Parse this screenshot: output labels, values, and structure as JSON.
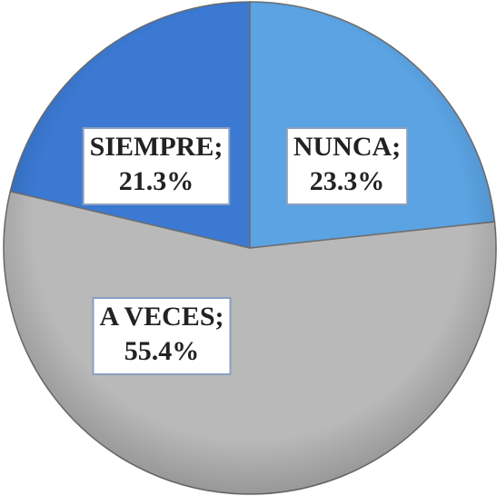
{
  "chart_data": {
    "type": "pie",
    "categories": [
      "NUNCA;",
      "A VECES;",
      "SIEMPRE;"
    ],
    "values": [
      23.3,
      55.4,
      21.3
    ],
    "value_labels": [
      "23.3%",
      "55.4%",
      "21.3%"
    ],
    "colors": [
      "#5ba3e3",
      "#b9b9b9",
      "#3b79d2"
    ],
    "start_angle": 0,
    "direction": "clockwise"
  }
}
